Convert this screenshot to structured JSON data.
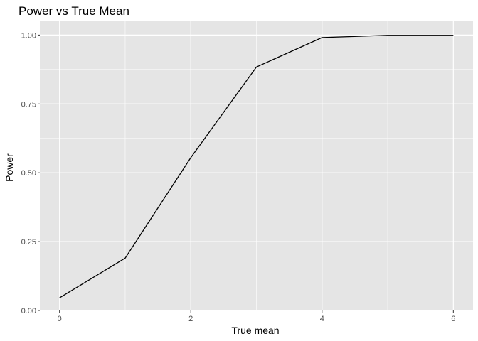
{
  "chart_data": {
    "type": "line",
    "title": "Power vs True Mean",
    "xlabel": "True mean",
    "ylabel": "Power",
    "x": [
      0,
      1,
      2,
      3,
      4,
      5,
      6
    ],
    "series": [
      {
        "values": [
          0.046,
          0.19,
          0.555,
          0.884,
          0.991,
          0.999,
          0.999
        ]
      }
    ],
    "xlim": [
      -0.3,
      6.3
    ],
    "ylim": [
      0,
      1.05
    ],
    "xticks": [
      0,
      2,
      4,
      6
    ],
    "xtick_labels": [
      "0",
      "2",
      "4",
      "6"
    ],
    "yticks": [
      0,
      0.25,
      0.5,
      0.75,
      1
    ],
    "ytick_labels": [
      "0.00",
      "0.25",
      "0.50",
      "0.75",
      "1.00"
    ],
    "grid": true,
    "line_color": "#000000",
    "panel_color": "#e5e5e5",
    "grid_color": "#ffffff"
  }
}
